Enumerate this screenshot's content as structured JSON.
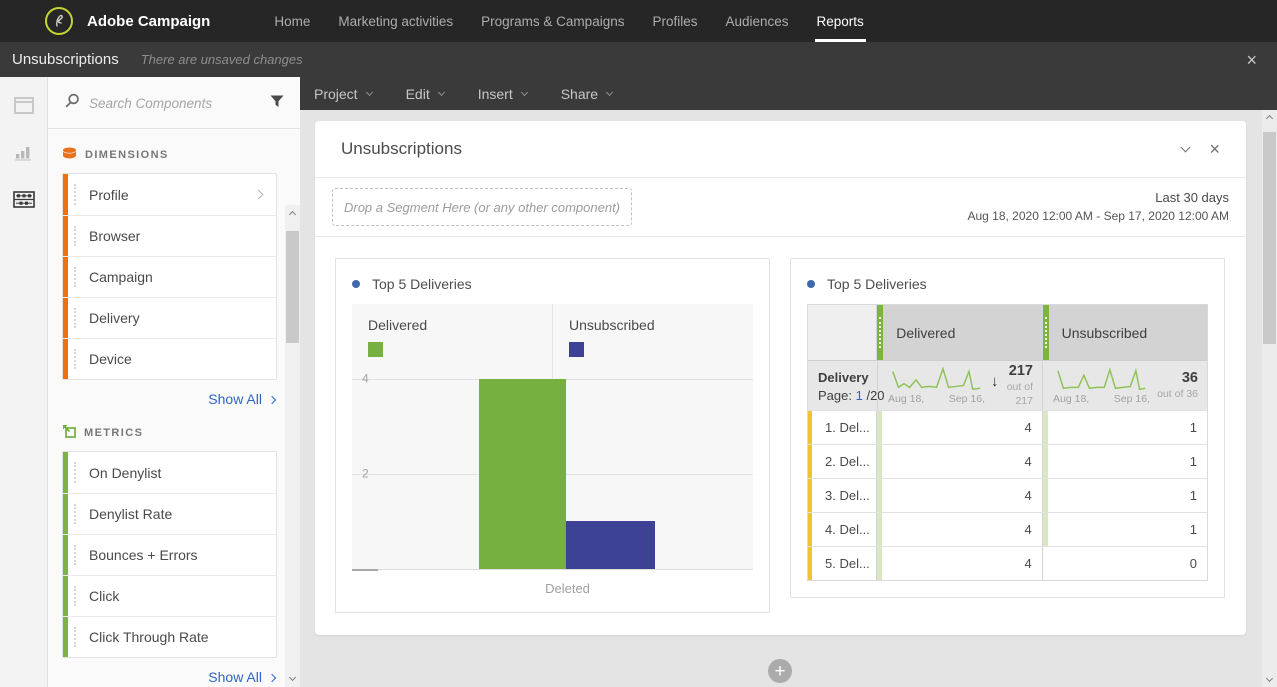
{
  "topbar": {
    "brand": "Adobe Campaign",
    "nav": [
      {
        "label": "Home"
      },
      {
        "label": "Marketing activities"
      },
      {
        "label": "Programs & Campaigns"
      },
      {
        "label": "Profiles"
      },
      {
        "label": "Audiences"
      },
      {
        "label": "Reports",
        "active": true
      }
    ]
  },
  "subbar": {
    "title": "Unsubscriptions",
    "status": "There are unsaved changes"
  },
  "menubar": {
    "items": [
      {
        "label": "Project"
      },
      {
        "label": "Edit"
      },
      {
        "label": "Insert"
      },
      {
        "label": "Share"
      }
    ]
  },
  "sidebar": {
    "search": {
      "placeholder": "Search Components"
    },
    "sections": [
      {
        "header": "DIMENSIONS",
        "accent": "#ED7012",
        "items": [
          {
            "label": "Profile",
            "chevron": true
          },
          {
            "label": "Browser"
          },
          {
            "label": "Campaign"
          },
          {
            "label": "Delivery"
          },
          {
            "label": "Device"
          }
        ],
        "show_all": "Show All"
      },
      {
        "header": "METRICS",
        "accent": "#7CB342",
        "items": [
          {
            "label": "On Denylist"
          },
          {
            "label": "Denylist Rate"
          },
          {
            "label": "Bounces + Errors"
          },
          {
            "label": "Click"
          },
          {
            "label": "Click Through Rate"
          }
        ],
        "show_all": "Show All"
      }
    ]
  },
  "panel": {
    "title": "Unsubscriptions",
    "dropzone_text": "Drop a Segment Here (or any other component)",
    "date_label": "Last 30 days",
    "date_range": "Aug 18, 2020 12:00 AM - Sep 17, 2020 12:00 AM"
  },
  "icons": {
    "close": "×",
    "sort_desc": "↓",
    "add": "+"
  },
  "colors": {
    "delivered_green": "#76B041",
    "unsubscribed_blue": "#3D4295",
    "dimension_accent": "#ED7012",
    "metric_accent": "#7CB342",
    "link_blue": "#2B66C9",
    "row_label_accent": "#F2C230",
    "row_value_accent": "#D9E7C5"
  },
  "chart_data": [
    {
      "type": "bar",
      "title": "Top 5 Deliveries",
      "categories": [
        "Deleted"
      ],
      "series": [
        {
          "name": "Delivered",
          "values": [
            4
          ],
          "color": "#76B041"
        },
        {
          "name": "Unsubscribed",
          "values": [
            1
          ],
          "color": "#3D4295"
        }
      ],
      "ylim": [
        0,
        4
      ],
      "yticks": [
        "4",
        "2"
      ],
      "grid": true,
      "legend_position": "top",
      "xlabel": "",
      "ylabel": ""
    },
    {
      "type": "table",
      "title": "Top 5 Deliveries",
      "row_header": "Delivery",
      "pagination": {
        "prefix": "Page:",
        "current": "1",
        "suffix": "/20"
      },
      "columns": [
        {
          "name": "Delivered",
          "total": "217",
          "total_caption": "out of 217",
          "spark_start": "Aug 18,",
          "spark_end": "Sep 16,",
          "sorted": true
        },
        {
          "name": "Unsubscribed",
          "total": "36",
          "total_caption": "out of 36",
          "spark_start": "Aug 18,",
          "spark_end": "Sep 16,"
        }
      ],
      "rows": [
        {
          "name": "1. Del...",
          "delivered": 4,
          "unsubscribed": 1
        },
        {
          "name": "2. Del...",
          "delivered": 4,
          "unsubscribed": 1
        },
        {
          "name": "3. Del...",
          "delivered": 4,
          "unsubscribed": 1
        },
        {
          "name": "4. Del...",
          "delivered": 4,
          "unsubscribed": 1
        },
        {
          "name": "5. Del...",
          "delivered": 4,
          "unsubscribed": 0
        }
      ]
    }
  ]
}
